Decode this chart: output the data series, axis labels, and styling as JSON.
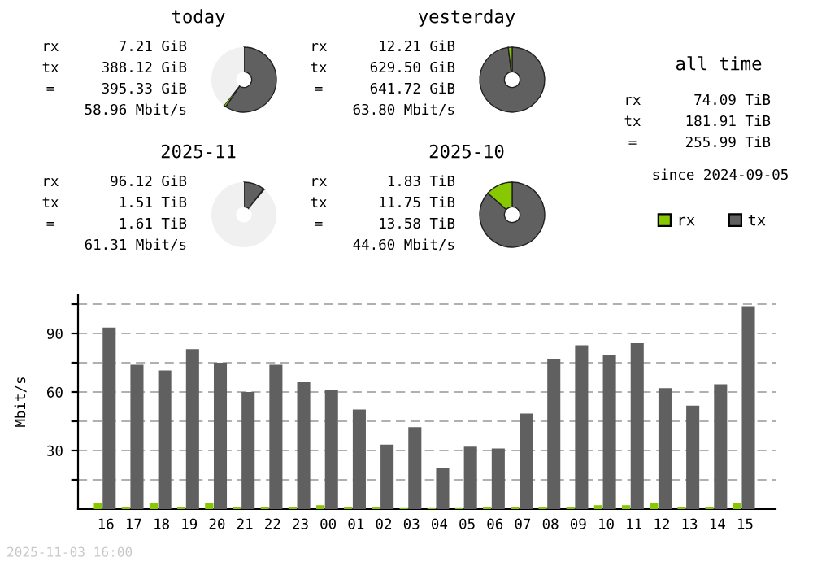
{
  "chart_data": [
    {
      "type": "donut",
      "title": "today",
      "categories": [
        null,
        null,
        null
      ],
      "values": [
        1.1,
        59.4,
        39.5
      ],
      "colors": [
        "#88c800",
        "#606060",
        "#f0f0f0"
      ],
      "annotations": [
        "rx 7.21 GiB",
        "tx 388.12 GiB",
        "= 395.33 GiB",
        "58.96 Mbit/s"
      ]
    },
    {
      "type": "donut",
      "title": "yesterday",
      "categories": [
        null,
        null
      ],
      "values": [
        1.9,
        98.1
      ],
      "colors": [
        "#88c800",
        "#606060"
      ],
      "annotations": [
        "rx 12.21 GiB",
        "tx 629.50 GiB",
        "= 641.72 GiB",
        "63.80 Mbit/s"
      ]
    },
    {
      "type": "other",
      "title": "all time",
      "annotations": [
        "rx 74.09 TiB",
        "tx 181.91 TiB",
        "= 255.99 TiB",
        "since 2024-09-05"
      ]
    },
    {
      "type": "donut",
      "title": "2025-11",
      "categories": [
        null,
        null,
        null
      ],
      "values": [
        0.6,
        10.4,
        89.0
      ],
      "colors": [
        "#88c800",
        "#606060",
        "#f0f0f0"
      ],
      "annotations": [
        "rx 96.12 GiB",
        "tx 1.51 TiB",
        "= 1.61 TiB",
        "61.31 Mbit/s"
      ]
    },
    {
      "type": "donut",
      "title": "2025-10",
      "categories": [
        null,
        null
      ],
      "values": [
        13.5,
        86.5
      ],
      "colors": [
        "#88c800",
        "#606060"
      ],
      "annotations": [
        "rx 1.83 TiB",
        "tx 11.75 TiB",
        "= 13.58 TiB",
        "44.60 Mbit/s"
      ]
    },
    {
      "type": "bar",
      "ylabel": "Mbit/s",
      "categories": [
        "16",
        "17",
        "18",
        "19",
        "20",
        "21",
        "22",
        "23",
        "00",
        "01",
        "02",
        "03",
        "04",
        "05",
        "06",
        "07",
        "08",
        "09",
        "10",
        "11",
        "12",
        "13",
        "14",
        "15"
      ],
      "series": [
        {
          "name": "rx",
          "color": "#88c800",
          "values": [
            3,
            1,
            3,
            1,
            3,
            1,
            1,
            1,
            2,
            1,
            1,
            0.5,
            0.5,
            0.5,
            1,
            1,
            1,
            1,
            2,
            2,
            3,
            1,
            1,
            3
          ]
        },
        {
          "name": "tx",
          "color": "#606060",
          "values": [
            93,
            74,
            71,
            82,
            75,
            60,
            74,
            65,
            61,
            51,
            33,
            42,
            21,
            32,
            31,
            49,
            77,
            84,
            79,
            85,
            62,
            53,
            64,
            104
          ]
        }
      ],
      "ylim": [
        0,
        110
      ],
      "yticks": [
        {
          "value": 15,
          "label": null
        },
        30,
        {
          "value": 45,
          "label": null
        },
        60,
        {
          "value": 75,
          "label": null
        },
        90,
        {
          "value": 105,
          "label": null
        }
      ],
      "grid": "y",
      "legend": "top right",
      "annotations": [
        "2025-11-03 16:00"
      ]
    }
  ]
}
